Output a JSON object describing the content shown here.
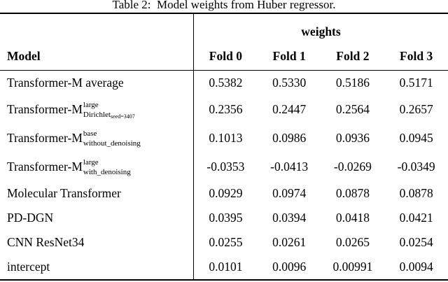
{
  "caption": "Table 2:  Model weights from Huber regressor.",
  "table": {
    "group_header": "weights",
    "model_header": "Model",
    "fold_headers": [
      "Fold 0",
      "Fold 1",
      "Fold 2",
      "Fold 3"
    ],
    "rows": [
      {
        "base": "Transformer-M average",
        "sup": "",
        "sub": "",
        "subsub": "",
        "values": [
          "0.5382",
          "0.5330",
          "0.5186",
          "0.5171"
        ]
      },
      {
        "base": "Transformer-M",
        "sup": "large",
        "sub": "Dirichlet",
        "subsub": "seed=3407",
        "values": [
          "0.2356",
          "0.2447",
          "0.2564",
          "0.2657"
        ]
      },
      {
        "base": "Transformer-M",
        "sup": "base",
        "sub": "without_denoising",
        "subsub": "",
        "values": [
          "0.1013",
          "0.0986",
          "0.0936",
          "0.0945"
        ]
      },
      {
        "base": "Transformer-M",
        "sup": "large",
        "sub": "with_denoising",
        "subsub": "",
        "values": [
          "-0.0353",
          "-0.0413",
          "-0.0269",
          "-0.0349"
        ]
      },
      {
        "base": "Molecular Transformer",
        "sup": "",
        "sub": "",
        "subsub": "",
        "values": [
          "0.0929",
          "0.0974",
          "0.0878",
          "0.0878"
        ]
      },
      {
        "base": "PD-DGN",
        "sup": "",
        "sub": "",
        "subsub": "",
        "values": [
          "0.0395",
          "0.0394",
          "0.0418",
          "0.0421"
        ]
      },
      {
        "base": "CNN ResNet34",
        "sup": "",
        "sub": "",
        "subsub": "",
        "values": [
          "0.0255",
          "0.0261",
          "0.0265",
          "0.0254"
        ]
      },
      {
        "base": "intercept",
        "sup": "",
        "sub": "",
        "subsub": "",
        "values": [
          "0.0101",
          "0.0096",
          "0.00991",
          "0.0094"
        ]
      }
    ]
  },
  "chart_data": {
    "type": "table",
    "title": "Table 2: Model weights from Huber regressor.",
    "column_group": {
      "label": "weights",
      "spans": [
        "Fold 0",
        "Fold 1",
        "Fold 2",
        "Fold 3"
      ]
    },
    "columns": [
      "Model",
      "Fold 0",
      "Fold 1",
      "Fold 2",
      "Fold 3"
    ],
    "rows": [
      [
        "Transformer-M average",
        0.5382,
        0.533,
        0.5186,
        0.5171
      ],
      [
        "Transformer-M^large_Dirichlet_seed=3407",
        0.2356,
        0.2447,
        0.2564,
        0.2657
      ],
      [
        "Transformer-M^base_without_denoising",
        0.1013,
        0.0986,
        0.0936,
        0.0945
      ],
      [
        "Transformer-M^large_with_denoising",
        -0.0353,
        -0.0413,
        -0.0269,
        -0.0349
      ],
      [
        "Molecular Transformer",
        0.0929,
        0.0974,
        0.0878,
        0.0878
      ],
      [
        "PD-DGN",
        0.0395,
        0.0394,
        0.0418,
        0.0421
      ],
      [
        "CNN ResNet34",
        0.0255,
        0.0261,
        0.0265,
        0.0254
      ],
      [
        "intercept",
        0.0101,
        0.0096,
        0.00991,
        0.0094
      ]
    ]
  }
}
